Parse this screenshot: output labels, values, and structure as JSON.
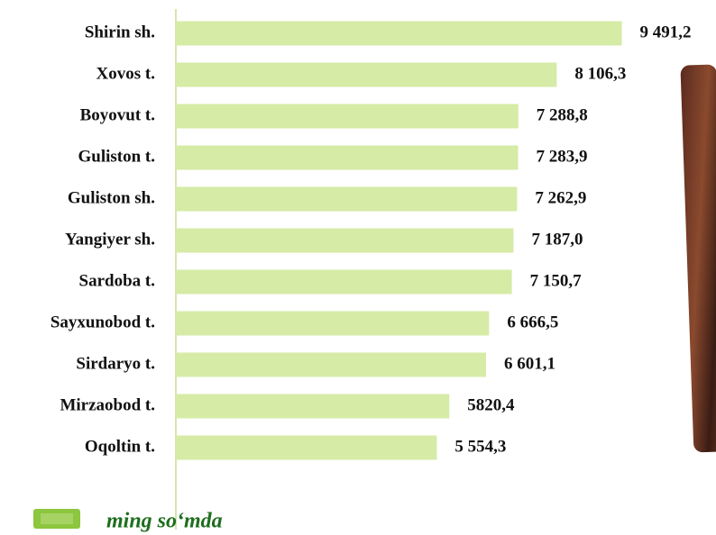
{
  "chart_data": {
    "type": "barh",
    "categories": [
      "Shirin sh.",
      "Xovos t.",
      "Boyovut t.",
      "Guliston t.",
      "Guliston sh.",
      "Yangiyer sh.",
      "Sardoba t.",
      "Sayxunobod t.",
      "Sirdaryo t.",
      "Mirzaobod t.",
      "Oqoltin t."
    ],
    "series": [
      {
        "name": "ming so‘mda",
        "color": "#d6eba6",
        "values": [
          9491.2,
          8106.3,
          7288.8,
          7283.9,
          7262.9,
          7187.0,
          7150.7,
          6666.5,
          6601.1,
          5820.4,
          5554.3
        ],
        "value_labels": [
          "9 491,2",
          "8 106,3",
          "7 288,8",
          "7 283,9",
          "7 262,9",
          "7 187,0",
          "7 150,7",
          "6 666,5",
          "6 601,1",
          "5820,4",
          "5 554,3"
        ]
      }
    ],
    "xlim": [
      0,
      9500
    ],
    "legend_swatch_color": "#8dc63f"
  }
}
